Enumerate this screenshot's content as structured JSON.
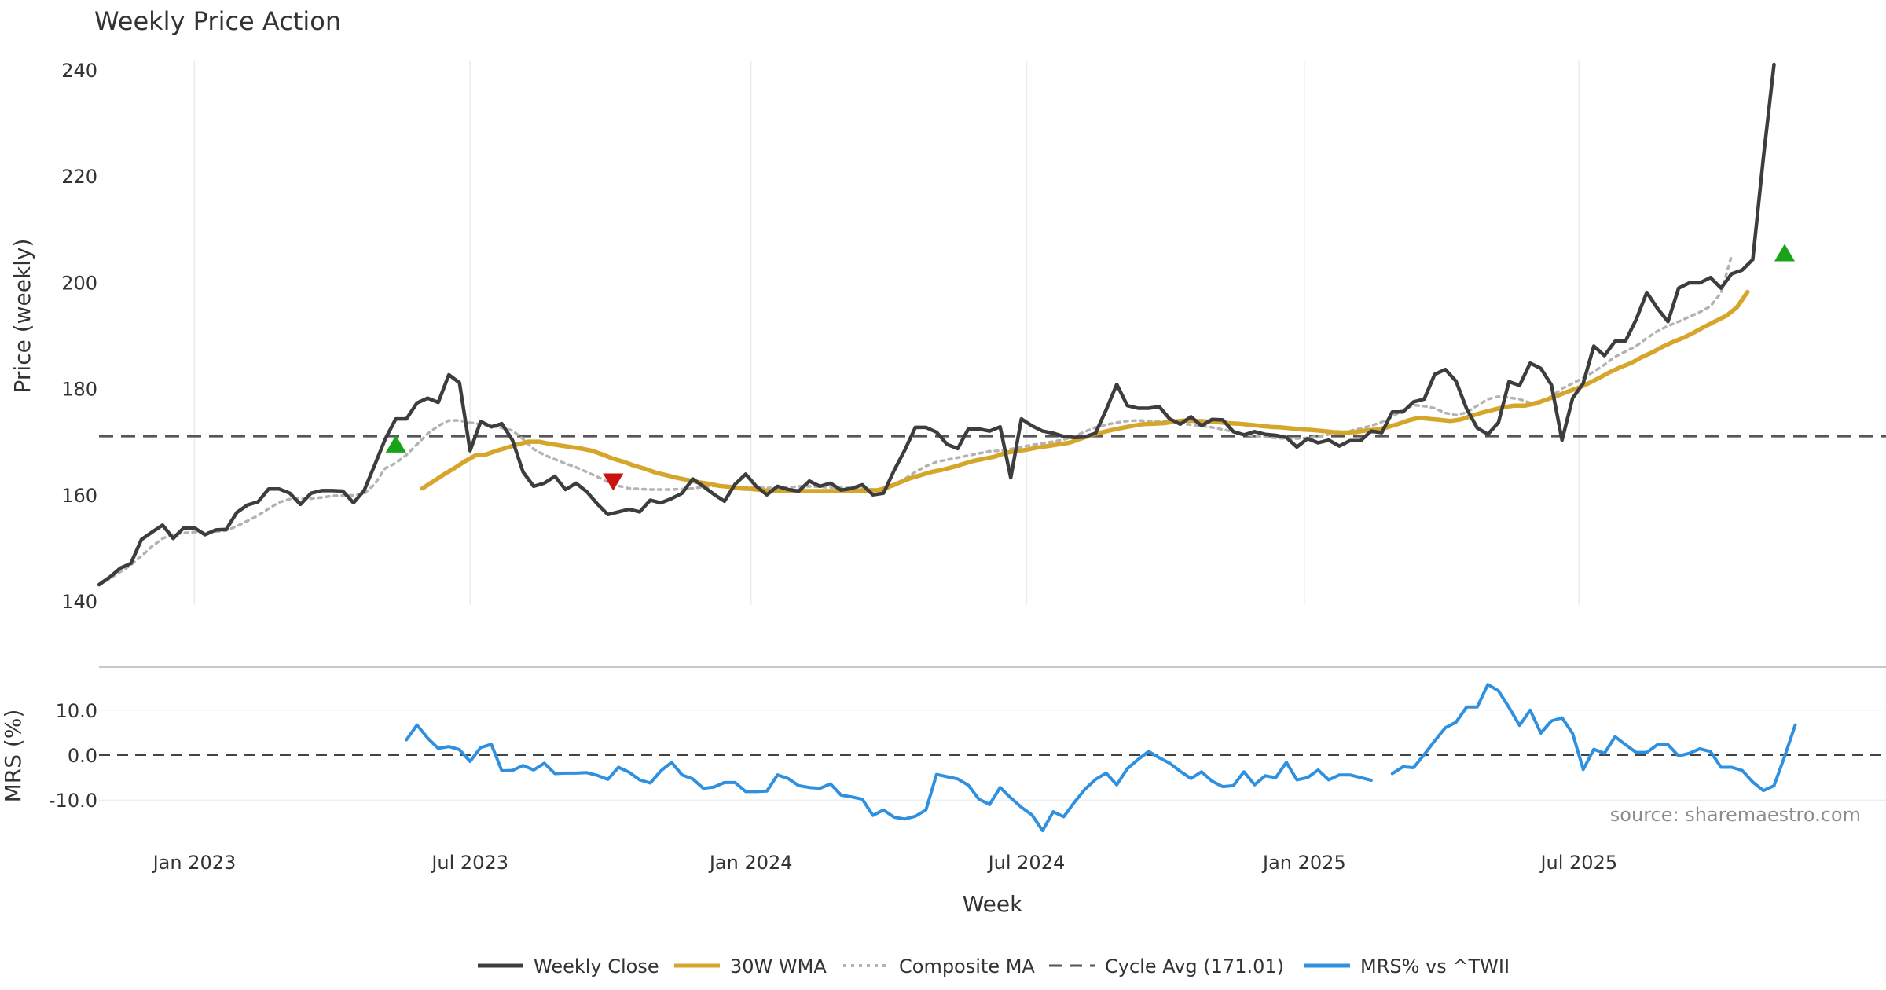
{
  "chart_data": {
    "type": "line",
    "title": "Weekly Price Action",
    "xlabel": "Week",
    "source": "source: sharemaestro.com",
    "x_ticks": [
      {
        "label": "Jan 2023",
        "week": 12
      },
      {
        "label": "Jul 2023",
        "week": 38
      },
      {
        "label": "Jan 2024",
        "week": 64.5
      },
      {
        "label": "Jul 2024",
        "week": 90.5
      },
      {
        "label": "Jan 2025",
        "week": 116.7
      },
      {
        "label": "Jul 2025",
        "week": 142.6
      }
    ],
    "x_range": [
      3,
      162
    ],
    "price_panel": {
      "ylabel": "Price (weekly)",
      "ylim": [
        140,
        245
      ],
      "yticks": [
        {
          "value": 140,
          "label": "140"
        },
        {
          "value": 160,
          "label": "160"
        },
        {
          "value": 180,
          "label": "180"
        },
        {
          "value": 200,
          "label": "200"
        },
        {
          "value": 220,
          "label": "220"
        },
        {
          "value": 240,
          "label": "240"
        }
      ],
      "cycle_avg": 171.01,
      "weekly_close": [
        143.1,
        144.5,
        146.2,
        147.1,
        151.6,
        153.0,
        154.3,
        151.8,
        153.8,
        153.8,
        152.5,
        153.4,
        153.5,
        156.7,
        158.1,
        158.7,
        161.1,
        161.1,
        160.3,
        158.2,
        160.3,
        160.8,
        160.8,
        160.7,
        158.5,
        160.8,
        165.6,
        170.5,
        174.3,
        174.3,
        177.3,
        178.2,
        177.4,
        182.6,
        181.1,
        168.3,
        173.8,
        172.8,
        173.4,
        170.3,
        164.3,
        161.6,
        162.2,
        163.5,
        161.0,
        162.2,
        160.6,
        158.3,
        156.3,
        156.8,
        157.3,
        156.8,
        159.0,
        158.5,
        159.3,
        160.3,
        163.0,
        161.6,
        160.1,
        158.8,
        162.0,
        163.9,
        161.6,
        160.0,
        161.6,
        161.0,
        160.7,
        162.6,
        161.6,
        162.2,
        160.9,
        161.2,
        161.9,
        160.0,
        160.3,
        164.6,
        168.4,
        172.7,
        172.7,
        171.8,
        169.5,
        168.7,
        172.4,
        172.4,
        172.0,
        172.8,
        163.2,
        174.3,
        173.0,
        172.0,
        171.6,
        171.0,
        170.8,
        170.9,
        171.6,
        176.0,
        180.8,
        176.8,
        176.3,
        176.3,
        176.6,
        174.3,
        173.3,
        174.7,
        173.0,
        174.2,
        174.1,
        171.9,
        171.3,
        171.9,
        171.4,
        171.2,
        170.8,
        169.0,
        170.6,
        169.8,
        170.3,
        169.2,
        170.2,
        170.2,
        172.0,
        171.7,
        175.6,
        175.6,
        177.5,
        178.0,
        182.7,
        183.6,
        181.4,
        176.2,
        172.6,
        171.4,
        173.6,
        181.3,
        180.6,
        184.8,
        183.8,
        180.7,
        170.3,
        178.2,
        181.0,
        188.0,
        186.2,
        188.9,
        189.0,
        193.0,
        198.1,
        195.1,
        192.6,
        198.9,
        199.9,
        199.9,
        200.9,
        198.9,
        201.6,
        202.3,
        204.3,
        223.5,
        241.0
      ],
      "wma_30w": [
        161.2,
        162.5,
        163.8,
        165.0,
        166.3,
        167.4,
        167.6,
        168.3,
        168.9,
        169.5,
        170.0,
        170.0,
        169.6,
        169.3,
        169.0,
        168.7,
        168.3,
        167.6,
        166.8,
        166.2,
        165.5,
        164.9,
        164.2,
        163.7,
        163.2,
        162.8,
        162.4,
        162.1,
        161.7,
        161.5,
        161.2,
        161.1,
        160.9,
        160.7,
        160.7,
        160.7,
        160.7,
        160.7,
        160.7,
        160.7,
        160.8,
        160.8,
        160.8,
        160.9,
        161.5,
        162.3,
        163.1,
        163.7,
        164.3,
        164.7,
        165.2,
        165.8,
        166.4,
        166.8,
        167.2,
        167.9,
        168.2,
        168.5,
        168.9,
        169.2,
        169.5,
        169.8,
        170.5,
        171.2,
        171.7,
        172.2,
        172.6,
        173.0,
        173.3,
        173.4,
        173.5,
        173.8,
        174.0,
        173.9,
        173.8,
        173.7,
        173.5,
        173.4,
        173.2,
        173.0,
        172.8,
        172.7,
        172.5,
        172.3,
        172.2,
        172.0,
        171.8,
        171.7,
        171.8,
        172.1,
        172.3,
        172.7,
        173.3,
        174.0,
        174.5,
        174.3,
        174.1,
        173.9,
        174.2,
        174.9,
        175.5,
        176.0,
        176.5,
        176.8,
        176.8,
        177.2,
        177.9,
        178.6,
        179.4,
        180.1,
        181.0,
        182.0,
        183.1,
        184.0,
        184.8,
        185.9,
        186.8,
        187.9,
        188.8,
        189.6,
        190.6,
        191.7,
        192.7,
        193.7,
        195.3,
        198.2
      ],
      "wma_start_week": 33.5,
      "composite_ma": [
        143.0,
        144.2,
        145.5,
        146.8,
        148.5,
        150.3,
        151.8,
        152.6,
        152.8,
        153.0,
        152.9,
        153.1,
        153.3,
        154.1,
        155.1,
        156.1,
        157.4,
        158.6,
        159.2,
        159.3,
        159.3,
        159.5,
        159.8,
        159.9,
        159.9,
        160.2,
        162.0,
        165.0,
        166.0,
        167.5,
        169.5,
        171.5,
        173.0,
        174.0,
        174.0,
        173.6,
        173.3,
        172.9,
        172.6,
        172.1,
        170.5,
        168.6,
        167.5,
        166.7,
        165.9,
        165.2,
        164.3,
        163.4,
        162.4,
        161.7,
        161.2,
        161.1,
        161.0,
        161.0,
        161.0,
        161.1,
        161.2,
        161.5,
        161.7,
        161.6,
        161.4,
        161.4,
        161.4,
        161.3,
        161.3,
        161.4,
        161.6,
        161.6,
        161.5,
        161.4,
        161.4,
        161.3,
        161.2,
        161.0,
        160.8,
        161.7,
        163.0,
        164.3,
        165.4,
        166.2,
        166.6,
        167.0,
        167.4,
        167.8,
        168.2,
        168.3,
        168.6,
        169.0,
        169.4,
        169.7,
        170.0,
        170.4,
        171.0,
        171.9,
        172.7,
        173.2,
        173.6,
        173.9,
        174.0,
        173.9,
        173.9,
        173.7,
        173.5,
        173.2,
        173.0,
        172.7,
        172.3,
        171.9,
        171.4,
        171.1,
        170.9,
        170.7,
        170.6,
        170.6,
        170.7,
        171.0,
        171.4,
        171.7,
        172.0,
        172.5,
        173.0,
        173.7,
        174.7,
        176.0,
        176.9,
        176.7,
        176.3,
        175.4,
        175.0,
        175.5,
        176.8,
        178.0,
        178.5,
        178.3,
        178.0,
        177.3,
        177.6,
        178.5,
        180.0,
        181.0,
        182.0,
        183.2,
        184.5,
        186.0,
        187.0,
        188.0,
        189.5,
        190.8,
        191.8,
        192.6,
        193.5,
        194.4,
        195.5,
        198.0,
        205.0
      ],
      "markers": [
        {
          "type": "buy",
          "week": 31,
          "price": 169.5
        },
        {
          "type": "sell",
          "week": 51.5,
          "price": 162.5
        },
        {
          "type": "buy",
          "week": 162,
          "price": 205.5
        }
      ]
    },
    "mrs_panel": {
      "ylabel": "MRS (%)",
      "ylim": [
        -18,
        18
      ],
      "yticks": [
        {
          "value": 10,
          "label": "10.0"
        },
        {
          "value": 0,
          "label": "0.0"
        },
        {
          "value": -10,
          "label": "-10.0"
        }
      ],
      "start_week": 32,
      "mrs_values": [
        3.4,
        6.7,
        3.8,
        1.5,
        1.9,
        1.2,
        -1.4,
        1.7,
        2.4,
        -3.5,
        -3.4,
        -2.3,
        -3.3,
        -1.8,
        -4.1,
        -4.0,
        -4.0,
        -3.9,
        -4.5,
        -5.4,
        -2.7,
        -3.8,
        -5.5,
        -6.2,
        -3.5,
        -1.6,
        -4.4,
        -5.3,
        -7.4,
        -7.1,
        -6.1,
        -6.1,
        -8.1,
        -8.1,
        -8.0,
        -4.4,
        -5.2,
        -6.8,
        -7.2,
        -7.4,
        -6.4,
        -8.9,
        -9.3,
        -9.8,
        -13.4,
        -12.2,
        -13.8,
        -14.2,
        -13.6,
        -12.2,
        -4.3,
        -4.8,
        -5.3,
        -6.7,
        -9.8,
        -11.0,
        -7.2,
        -9.5,
        -11.6,
        -13.3,
        -16.8,
        -12.6,
        -13.7,
        -10.5,
        -7.6,
        -5.4,
        -4.0,
        -6.6,
        -3.0,
        -1.0,
        0.8,
        -0.6,
        -1.8,
        -3.6,
        -5.2,
        -3.7,
        -5.8,
        -7.0,
        -6.8,
        -3.7,
        -6.6,
        -4.6,
        -5.0,
        -1.6,
        -5.5,
        -5.0,
        -3.3,
        -5.5,
        -4.4,
        -4.4,
        -5.0,
        -5.6,
        null,
        -4.1,
        -2.6,
        -2.8,
        0.1,
        3.2,
        6.1,
        7.3,
        10.7,
        10.7,
        15.7,
        14.3,
        10.6,
        6.6,
        10.0,
        4.9,
        7.6,
        8.3,
        4.8,
        -3.2,
        1.3,
        0.4,
        4.1,
        2.3,
        0.6,
        0.6,
        2.3,
        2.3,
        -0.2,
        0.4,
        1.4,
        0.8,
        -2.7,
        -2.7,
        -3.4,
        -6.0,
        -7.9,
        -6.8,
        -0.3,
        6.7
      ]
    },
    "legend": [
      {
        "label": "Weekly Close",
        "color": "#3d3d3d",
        "style": "solid"
      },
      {
        "label": "30W WMA",
        "color": "#d6a52b",
        "style": "solid"
      },
      {
        "label": "Composite MA",
        "color": "#b3b3b3",
        "style": "dotted"
      },
      {
        "label": "Cycle Avg (171.01)",
        "color": "#555555",
        "style": "dashed"
      },
      {
        "label": "MRS% vs ^TWII",
        "color": "#2f90e0",
        "style": "solid"
      }
    ],
    "colors": {
      "close": "#3d3d3d",
      "wma": "#d6a52b",
      "composite": "#b3b3b3",
      "cycle": "#555555",
      "mrs": "#2f90e0",
      "buy": "#18a318",
      "sell": "#cc1111",
      "grid": "#e9ecef"
    }
  }
}
